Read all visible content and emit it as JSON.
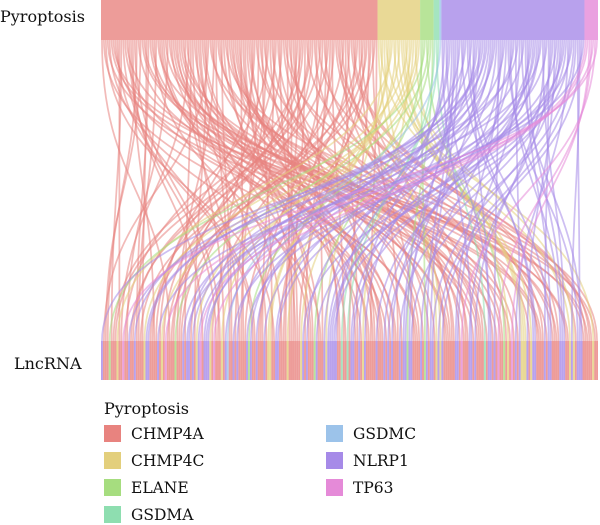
{
  "chart_data": {
    "type": "sankey",
    "nodes_top_label": "Pyroptosis",
    "nodes_bottom_label": "LncRNA",
    "legend_title": "Pyroptosis",
    "legend_position": "bottom-left",
    "series": [
      {
        "name": "CHMP4A",
        "color": "#E8837F",
        "links": 143
      },
      {
        "name": "CHMP4C",
        "color": "#E3CF7C",
        "links": 22
      },
      {
        "name": "ELANE",
        "color": "#A6DD7F",
        "links": 7
      },
      {
        "name": "GSDMA",
        "color": "#8EDEB0",
        "links": 3
      },
      {
        "name": "GSDMC",
        "color": "#9CC3EA",
        "links": 1
      },
      {
        "name": "NLRP1",
        "color": "#A68AE8",
        "links": 74
      },
      {
        "name": "TP63",
        "color": "#E58AD8",
        "links": 7
      }
    ]
  }
}
